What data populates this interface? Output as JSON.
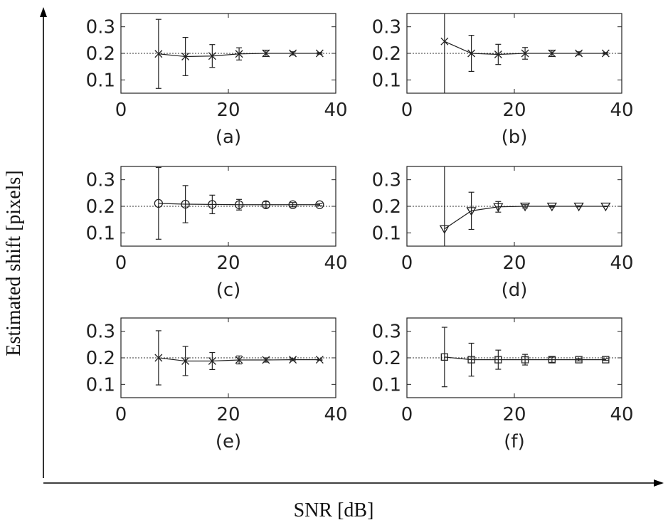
{
  "figure": {
    "xlabel": "SNR [dB]",
    "ylabel": "Estimated shift [pixels]"
  },
  "chart_data": [
    {
      "type": "line",
      "caption": "(a)",
      "marker": "x",
      "reference_line": 0.2,
      "xlim": [
        0,
        40
      ],
      "ylim": [
        0.05,
        0.35
      ],
      "xticks": [
        "0",
        "20",
        "40"
      ],
      "yticks": [
        "0.1",
        "0.2",
        "0.3"
      ],
      "x": [
        7,
        12,
        17,
        22,
        27,
        32,
        37
      ],
      "y": [
        0.198,
        0.188,
        0.19,
        0.198,
        0.2,
        0.2,
        0.2
      ],
      "error": [
        0.13,
        0.072,
        0.043,
        0.023,
        0.012,
        0.006,
        0.003
      ]
    },
    {
      "type": "line",
      "caption": "(b)",
      "marker": "x",
      "reference_line": 0.2,
      "xlim": [
        0,
        40
      ],
      "ylim": [
        0.05,
        0.35
      ],
      "xticks": [
        "0",
        "20",
        "40"
      ],
      "yticks": [
        "0.1",
        "0.2",
        "0.3"
      ],
      "x": [
        7,
        12,
        17,
        22,
        27,
        32,
        37
      ],
      "y": [
        0.245,
        0.2,
        0.196,
        0.2,
        0.2,
        0.2,
        0.2
      ],
      "error": [
        0.4,
        0.068,
        0.038,
        0.022,
        0.012,
        0.006,
        0.003
      ]
    },
    {
      "type": "line",
      "caption": "(c)",
      "marker": "circle",
      "reference_line": 0.2,
      "xlim": [
        0,
        40
      ],
      "ylim": [
        0.05,
        0.35
      ],
      "xticks": [
        "0",
        "20",
        "40"
      ],
      "yticks": [
        "0.1",
        "0.2",
        "0.3"
      ],
      "x": [
        7,
        12,
        17,
        22,
        27,
        32,
        37
      ],
      "y": [
        0.211,
        0.208,
        0.207,
        0.206,
        0.206,
        0.206,
        0.206
      ],
      "error": [
        0.135,
        0.07,
        0.035,
        0.02,
        0.012,
        0.008,
        0.004
      ]
    },
    {
      "type": "line",
      "caption": "(d)",
      "marker": "triangle-down",
      "reference_line": 0.2,
      "xlim": [
        0,
        40
      ],
      "ylim": [
        0.05,
        0.35
      ],
      "xticks": [
        "0",
        "20",
        "40"
      ],
      "yticks": [
        "0.1",
        "0.2",
        "0.3"
      ],
      "x": [
        7,
        12,
        17,
        22,
        27,
        32,
        37
      ],
      "y": [
        0.115,
        0.183,
        0.198,
        0.2,
        0.2,
        0.2,
        0.2
      ],
      "error": [
        0.4,
        0.07,
        0.02,
        0.006,
        0.003,
        0.002,
        0.001
      ]
    },
    {
      "type": "line",
      "caption": "(e)",
      "marker": "x",
      "reference_line": 0.2,
      "xlim": [
        0,
        40
      ],
      "ylim": [
        0.05,
        0.35
      ],
      "xticks": [
        "0",
        "20",
        "40"
      ],
      "yticks": [
        "0.1",
        "0.2",
        "0.3"
      ],
      "x": [
        7,
        12,
        17,
        22,
        27,
        32,
        37
      ],
      "y": [
        0.2,
        0.188,
        0.188,
        0.192,
        0.192,
        0.193,
        0.193
      ],
      "error": [
        0.102,
        0.055,
        0.032,
        0.015,
        0.008,
        0.004,
        0.002
      ]
    },
    {
      "type": "line",
      "caption": "(f)",
      "marker": "square",
      "reference_line": 0.2,
      "xlim": [
        0,
        40
      ],
      "ylim": [
        0.05,
        0.35
      ],
      "xticks": [
        "0",
        "20",
        "40"
      ],
      "yticks": [
        "0.1",
        "0.2",
        "0.3"
      ],
      "x": [
        7,
        12,
        17,
        22,
        27,
        32,
        37
      ],
      "y": [
        0.203,
        0.193,
        0.193,
        0.193,
        0.193,
        0.193,
        0.193
      ],
      "error": [
        0.112,
        0.062,
        0.036,
        0.02,
        0.01,
        0.005,
        0.003
      ]
    }
  ]
}
